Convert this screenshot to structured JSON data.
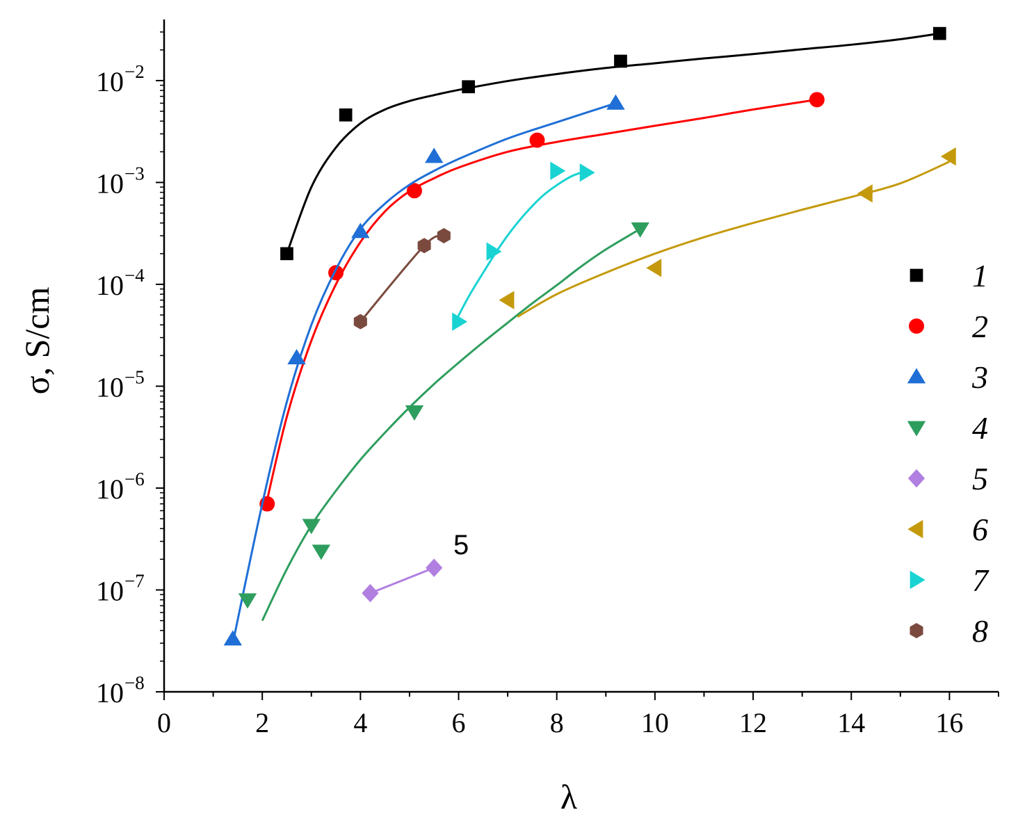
{
  "chart_data": {
    "type": "scatter",
    "xlabel": "λ",
    "ylabel": "σ, S/cm",
    "xlim": [
      0,
      17
    ],
    "ylim_exponents": [
      -8,
      -1.4
    ],
    "y_scale": "log",
    "x_ticks": [
      "0",
      "2",
      "4",
      "6",
      "8",
      "10",
      "12",
      "14",
      "16"
    ],
    "y_tick_labels": [
      "10",
      "10",
      "10",
      "10",
      "10",
      "10",
      "10"
    ],
    "y_tick_exponents": [
      "-8",
      "-7",
      "-6",
      "-5",
      "-4",
      "-3",
      "-2"
    ],
    "legend_position": "right",
    "annotation": "5",
    "series": [
      {
        "name": "1",
        "marker": "square",
        "color": "#000000",
        "x": [
          2.5,
          3.7,
          6.2,
          9.3,
          15.8
        ],
        "y": [
          0.0002,
          0.0046,
          0.0087,
          0.0155,
          0.029
        ],
        "fit_x": [
          2.5,
          3.0,
          3.5,
          4.0,
          4.5,
          5.0,
          5.5,
          6.0,
          7.0,
          8.0,
          9.0,
          10.0,
          11.0,
          12.0,
          13.0,
          14.0,
          15.0,
          15.8
        ],
        "fit_y": [
          0.0002,
          0.0009,
          0.0022,
          0.0038,
          0.0052,
          0.0063,
          0.0072,
          0.0081,
          0.0099,
          0.0116,
          0.0133,
          0.0148,
          0.0165,
          0.0182,
          0.0203,
          0.0225,
          0.0255,
          0.029
        ]
      },
      {
        "name": "2",
        "marker": "circle",
        "color": "#ff0000",
        "x": [
          2.1,
          3.5,
          5.1,
          7.6,
          13.3
        ],
        "y": [
          7e-07,
          0.00013,
          0.00083,
          0.0026,
          0.0065
        ],
        "fit_x": [
          2.05,
          2.5,
          3.0,
          3.5,
          4.0,
          4.5,
          5.0,
          5.5,
          6.0,
          7.0,
          8.0,
          9.0,
          10.0,
          11.0,
          12.0,
          13.3
        ],
        "fit_y": [
          6e-07,
          5e-06,
          2.8e-05,
          0.0001,
          0.00026,
          0.00052,
          0.00082,
          0.0011,
          0.0014,
          0.002,
          0.0025,
          0.003,
          0.0036,
          0.0043,
          0.0052,
          0.0065
        ]
      },
      {
        "name": "3",
        "marker": "triangle-up",
        "color": "#1f6fd6",
        "x": [
          1.4,
          2.7,
          4.0,
          5.5,
          9.2
        ],
        "y": [
          3.3e-08,
          1.9e-05,
          0.00033,
          0.0018,
          0.006
        ],
        "fit_x": [
          1.4,
          2.0,
          2.5,
          3.0,
          3.5,
          4.0,
          4.5,
          5.0,
          5.5,
          6.0,
          7.0,
          8.0,
          9.2
        ],
        "fit_y": [
          3e-08,
          7e-07,
          7e-06,
          4e-05,
          0.00014,
          0.00035,
          0.00062,
          0.00095,
          0.0013,
          0.0017,
          0.0027,
          0.0039,
          0.006
        ]
      },
      {
        "name": "4",
        "marker": "triangle-down",
        "color": "#2e9e5e",
        "x": [
          1.7,
          3.0,
          3.2,
          5.1,
          9.7
        ],
        "y": [
          8e-08,
          4.3e-07,
          2.4e-07,
          5.6e-06,
          0.00035
        ],
        "fit_x": [
          2.0,
          2.5,
          3.0,
          3.5,
          4.0,
          4.5,
          5.0,
          5.5,
          6.0,
          6.5,
          7.0,
          7.5,
          8.0,
          8.5,
          9.0,
          9.7
        ],
        "fit_y": [
          5e-08,
          1.6e-07,
          4.3e-07,
          9.4e-07,
          1.9e-06,
          3.5e-06,
          6.2e-06,
          1.05e-05,
          1.7e-05,
          2.7e-05,
          4.2e-05,
          6.5e-05,
          9.8e-05,
          0.00015,
          0.00022,
          0.00035
        ]
      },
      {
        "name": "5",
        "marker": "diamond",
        "color": "#b07fe0",
        "x": [
          4.2,
          5.5
        ],
        "y": [
          9.3e-08,
          1.65e-07
        ],
        "fit_x": [
          4.2,
          5.5
        ],
        "fit_y": [
          9.3e-08,
          1.65e-07
        ]
      },
      {
        "name": "6",
        "marker": "triangle-left",
        "color": "#c49a0c",
        "x": [
          7.0,
          10.0,
          14.3,
          16.0
        ],
        "y": [
          7e-05,
          0.000145,
          0.00078,
          0.0018
        ],
        "fit_x": [
          7.2,
          8.0,
          9.0,
          10.0,
          11.0,
          12.0,
          13.0,
          14.0,
          15.0,
          16.0
        ],
        "fit_y": [
          4.8e-05,
          8e-05,
          0.00013,
          0.0002,
          0.00029,
          0.0004,
          0.00054,
          0.00072,
          0.00098,
          0.0016
        ]
      },
      {
        "name": "7",
        "marker": "triangle-right",
        "color": "#19d3d3",
        "x": [
          6.0,
          6.7,
          8.0,
          8.6
        ],
        "y": [
          4.3e-05,
          0.00021,
          0.0013,
          0.00125
        ],
        "fit_x": [
          5.9,
          6.2,
          6.5,
          6.8,
          7.1,
          7.4,
          7.7,
          8.0,
          8.3,
          8.6
        ],
        "fit_y": [
          4e-05,
          7.5e-05,
          0.00013,
          0.00022,
          0.00035,
          0.00052,
          0.00073,
          0.00094,
          0.00115,
          0.0013
        ]
      },
      {
        "name": "8",
        "marker": "hexagon",
        "color": "#7b4a3f",
        "x": [
          4.0,
          5.3,
          5.7
        ],
        "y": [
          4.3e-05,
          0.00024,
          0.0003
        ],
        "fit_x": [
          4.0,
          5.3,
          5.7
        ],
        "fit_y": [
          4.3e-05,
          0.00024,
          0.0003
        ]
      }
    ]
  }
}
